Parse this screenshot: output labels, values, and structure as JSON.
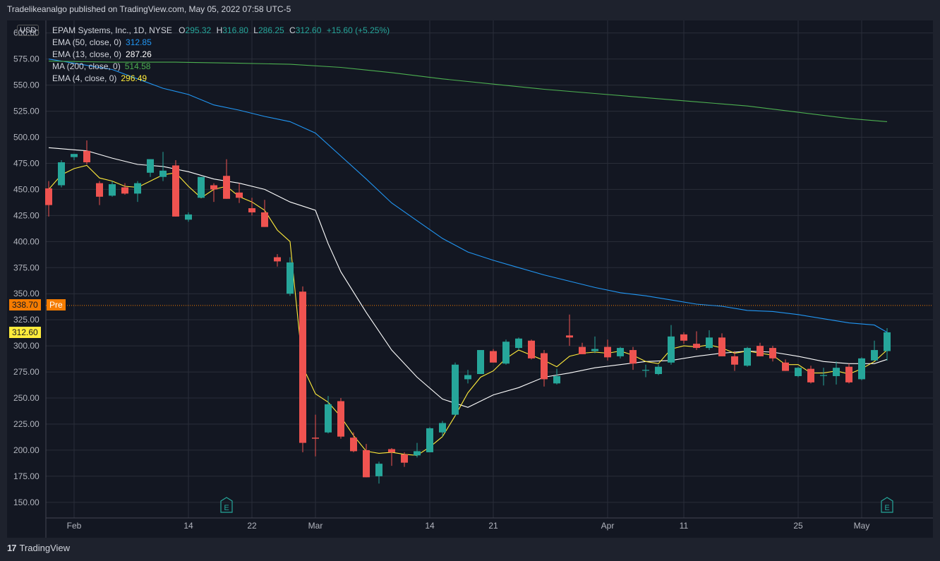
{
  "header": {
    "published": "Tradelikeanalgo published on TradingView.com, May 05, 2022 07:58 UTC-5"
  },
  "footer": {
    "brand": "TradingView",
    "logo_glyph": "17"
  },
  "currency_button": "USD",
  "legend": {
    "symbol": "EPAM Systems, Inc., 1D, NYSE",
    "ohlc": [
      {
        "k": "O",
        "v": "295.32"
      },
      {
        "k": "H",
        "v": "316.80"
      },
      {
        "k": "L",
        "v": "286.25"
      },
      {
        "k": "C",
        "v": "312.60"
      }
    ],
    "change": "+15.60 (+5.25%)",
    "indicators": [
      {
        "label": "EMA (50, close, 0)",
        "value": "312.85",
        "color": "#2196f3"
      },
      {
        "label": "EMA (13, close, 0)",
        "value": "287.26",
        "color": "#ffffff"
      },
      {
        "label": "MA (200, close, 0)",
        "value": "514.58",
        "color": "#4caf50"
      },
      {
        "label": "EMA (4, close, 0)",
        "value": "296.49",
        "color": "#ffeb3b"
      }
    ]
  },
  "price_tags": {
    "pre_value": "338.70",
    "pre_label": "Pre",
    "pre_color": "#f57c00",
    "last_value": "312.60",
    "last_color": "#ffeb3b"
  },
  "earnings_marker": "E",
  "chart_data": {
    "type": "candlestick",
    "title": "EPAM Systems, Inc., 1D, NYSE",
    "ylim": [
      135,
      612
    ],
    "y_ticks": [
      150,
      175,
      200,
      225,
      250,
      275,
      300,
      325,
      350,
      375,
      400,
      425,
      450,
      475,
      500,
      525,
      550,
      575,
      600
    ],
    "x_tick_labels": [
      {
        "label": "Feb",
        "index": 2
      },
      {
        "label": "14",
        "index": 11
      },
      {
        "label": "22",
        "index": 16
      },
      {
        "label": "Mar",
        "index": 21
      },
      {
        "label": "14",
        "index": 30
      },
      {
        "label": "21",
        "index": 35
      },
      {
        "label": "Apr",
        "index": 44
      },
      {
        "label": "11",
        "index": 50
      },
      {
        "label": "25",
        "index": 59
      },
      {
        "label": "May",
        "index": 64
      }
    ],
    "num_slots": 67,
    "earnings_indices": [
      14,
      66
    ],
    "pre_market_price": 338.7,
    "candles": [
      [
        451,
        458,
        424,
        435
      ],
      [
        454,
        478,
        452,
        476
      ],
      [
        481,
        484,
        478,
        484
      ],
      [
        487,
        497,
        474,
        476
      ],
      [
        456,
        458,
        435,
        443
      ],
      [
        444,
        458,
        443,
        455
      ],
      [
        452,
        456,
        445,
        446
      ],
      [
        446,
        458,
        438,
        456
      ],
      [
        466,
        479,
        462,
        479
      ],
      [
        462,
        486,
        458,
        468
      ],
      [
        473,
        478,
        424,
        424
      ],
      [
        421,
        428,
        419,
        426
      ],
      [
        442,
        462,
        442,
        462
      ],
      [
        454,
        456,
        438,
        450
      ],
      [
        463,
        479,
        441,
        441
      ],
      [
        447,
        456,
        437,
        442
      ],
      [
        432,
        442,
        425,
        428
      ],
      [
        428,
        440,
        414,
        414
      ],
      [
        385,
        388,
        376,
        381
      ],
      [
        350,
        385,
        348,
        380
      ],
      [
        352,
        357,
        198,
        207
      ],
      [
        212,
        234,
        194,
        211
      ],
      [
        217,
        252,
        216,
        244
      ],
      [
        247,
        250,
        211,
        213
      ],
      [
        212,
        217,
        198,
        199
      ],
      [
        200,
        206,
        174,
        174
      ],
      [
        175,
        189,
        168,
        187
      ],
      [
        201,
        202,
        185,
        198
      ],
      [
        196,
        198,
        184,
        188
      ],
      [
        195,
        207,
        193,
        199
      ],
      [
        198,
        222,
        198,
        221
      ],
      [
        217,
        228,
        213,
        226
      ],
      [
        234,
        284,
        233,
        282
      ],
      [
        268,
        277,
        264,
        272
      ],
      [
        273,
        296,
        273,
        296
      ],
      [
        295,
        297,
        284,
        284
      ],
      [
        283,
        306,
        282,
        304
      ],
      [
        298,
        308,
        296,
        307
      ],
      [
        305,
        306,
        287,
        288
      ],
      [
        293,
        296,
        261,
        268
      ],
      [
        264,
        278,
        263,
        271
      ],
      [
        310,
        330,
        300,
        308
      ],
      [
        299,
        303,
        292,
        292
      ],
      [
        295,
        309,
        293,
        297
      ],
      [
        299,
        306,
        286,
        289
      ],
      [
        290,
        299,
        288,
        298
      ],
      [
        296,
        299,
        277,
        283
      ],
      [
        277,
        282,
        270,
        277
      ],
      [
        273,
        282,
        272,
        280
      ],
      [
        284,
        320,
        282,
        309
      ],
      [
        311,
        313,
        302,
        305
      ],
      [
        302,
        314,
        296,
        298
      ],
      [
        298,
        315,
        296,
        308
      ],
      [
        308,
        312,
        290,
        290
      ],
      [
        290,
        295,
        276,
        282
      ],
      [
        281,
        299,
        280,
        298
      ],
      [
        300,
        303,
        290,
        290
      ],
      [
        298,
        300,
        285,
        288
      ],
      [
        284,
        287,
        276,
        276
      ],
      [
        271,
        280,
        270,
        279
      ],
      [
        278,
        281,
        264,
        265
      ],
      [
        272,
        279,
        262,
        272
      ],
      [
        271,
        285,
        263,
        279
      ],
      [
        280,
        283,
        264,
        265
      ],
      [
        268,
        289,
        267,
        288
      ],
      [
        286,
        305,
        286,
        296
      ],
      [
        295,
        317,
        286,
        313
      ]
    ],
    "series": [
      {
        "name": "EMA (50, close, 0)",
        "color": "#2196f3",
        "points": [
          [
            0,
            575
          ],
          [
            1,
            573
          ],
          [
            3,
            569
          ],
          [
            5,
            565
          ],
          [
            7,
            556
          ],
          [
            9,
            547
          ],
          [
            11,
            541
          ],
          [
            13,
            531
          ],
          [
            15,
            526
          ],
          [
            17,
            520
          ],
          [
            19,
            515
          ],
          [
            21,
            504
          ],
          [
            23,
            482
          ],
          [
            25,
            460
          ],
          [
            27,
            437
          ],
          [
            29,
            420
          ],
          [
            31,
            403
          ],
          [
            33,
            390
          ],
          [
            35,
            382
          ],
          [
            37,
            375
          ],
          [
            39,
            368
          ],
          [
            41,
            362
          ],
          [
            43,
            356
          ],
          [
            45,
            351
          ],
          [
            47,
            348
          ],
          [
            49,
            344
          ],
          [
            51,
            340
          ],
          [
            53,
            338
          ],
          [
            55,
            334
          ],
          [
            57,
            333
          ],
          [
            59,
            330
          ],
          [
            61,
            326
          ],
          [
            63,
            322
          ],
          [
            65,
            320
          ],
          [
            66,
            313
          ]
        ]
      },
      {
        "name": "EMA (13, close, 0)",
        "color": "#ffffff",
        "points": [
          [
            0,
            490
          ],
          [
            2,
            488
          ],
          [
            3,
            487
          ],
          [
            5,
            480
          ],
          [
            7,
            474
          ],
          [
            9,
            472
          ],
          [
            11,
            467
          ],
          [
            13,
            460
          ],
          [
            15,
            456
          ],
          [
            17,
            450
          ],
          [
            19,
            438
          ],
          [
            21,
            430
          ],
          [
            22,
            398
          ],
          [
            23,
            371
          ],
          [
            25,
            332
          ],
          [
            27,
            296
          ],
          [
            29,
            270
          ],
          [
            31,
            249
          ],
          [
            33,
            241
          ],
          [
            35,
            253
          ],
          [
            37,
            260
          ],
          [
            39,
            270
          ],
          [
            41,
            274
          ],
          [
            43,
            279
          ],
          [
            45,
            282
          ],
          [
            47,
            285
          ],
          [
            49,
            286
          ],
          [
            51,
            290
          ],
          [
            53,
            293
          ],
          [
            55,
            295
          ],
          [
            57,
            294
          ],
          [
            59,
            290
          ],
          [
            61,
            285
          ],
          [
            63,
            283
          ],
          [
            65,
            283
          ],
          [
            66,
            287
          ]
        ]
      },
      {
        "name": "MA (200, close, 0)",
        "color": "#4caf50",
        "points": [
          [
            0,
            573
          ],
          [
            5,
            572
          ],
          [
            10,
            572
          ],
          [
            15,
            571
          ],
          [
            19,
            570
          ],
          [
            23,
            567
          ],
          [
            27,
            562
          ],
          [
            31,
            556
          ],
          [
            35,
            551
          ],
          [
            39,
            546
          ],
          [
            43,
            542
          ],
          [
            47,
            538
          ],
          [
            51,
            534
          ],
          [
            55,
            530
          ],
          [
            59,
            524
          ],
          [
            63,
            518
          ],
          [
            66,
            515
          ]
        ]
      },
      {
        "name": "EMA (4, close, 0)",
        "color": "#ffeb3b",
        "points": [
          [
            0,
            450
          ],
          [
            1,
            464
          ],
          [
            2,
            470
          ],
          [
            3,
            473
          ],
          [
            4,
            461
          ],
          [
            5,
            458
          ],
          [
            6,
            453
          ],
          [
            7,
            452
          ],
          [
            8,
            458
          ],
          [
            9,
            464
          ],
          [
            10,
            466
          ],
          [
            11,
            453
          ],
          [
            12,
            442
          ],
          [
            13,
            450
          ],
          [
            14,
            453
          ],
          [
            15,
            443
          ],
          [
            16,
            438
          ],
          [
            17,
            430
          ],
          [
            18,
            411
          ],
          [
            19,
            400
          ],
          [
            20,
            280
          ],
          [
            21,
            254
          ],
          [
            22,
            246
          ],
          [
            23,
            232
          ],
          [
            24,
            214
          ],
          [
            25,
            199
          ],
          [
            26,
            197
          ],
          [
            27,
            198
          ],
          [
            28,
            196
          ],
          [
            29,
            195
          ],
          [
            30,
            203
          ],
          [
            31,
            213
          ],
          [
            32,
            233
          ],
          [
            33,
            255
          ],
          [
            34,
            270
          ],
          [
            35,
            276
          ],
          [
            36,
            288
          ],
          [
            37,
            296
          ],
          [
            38,
            291
          ],
          [
            39,
            286
          ],
          [
            40,
            280
          ],
          [
            41,
            290
          ],
          [
            42,
            293
          ],
          [
            43,
            294
          ],
          [
            44,
            293
          ],
          [
            45,
            295
          ],
          [
            46,
            291
          ],
          [
            47,
            285
          ],
          [
            48,
            283
          ],
          [
            49,
            297
          ],
          [
            50,
            300
          ],
          [
            51,
            299
          ],
          [
            52,
            301
          ],
          [
            53,
            298
          ],
          [
            54,
            293
          ],
          [
            55,
            295
          ],
          [
            56,
            293
          ],
          [
            57,
            291
          ],
          [
            58,
            282
          ],
          [
            59,
            282
          ],
          [
            60,
            274
          ],
          [
            61,
            274
          ],
          [
            62,
            276
          ],
          [
            63,
            273
          ],
          [
            64,
            278
          ],
          [
            65,
            285
          ],
          [
            66,
            296
          ]
        ]
      }
    ],
    "colors": {
      "up": "#26a69a",
      "down": "#ef5350",
      "grid": "#2a2e39",
      "text": "#b2b5be",
      "pre_line": "#f57c00"
    }
  }
}
